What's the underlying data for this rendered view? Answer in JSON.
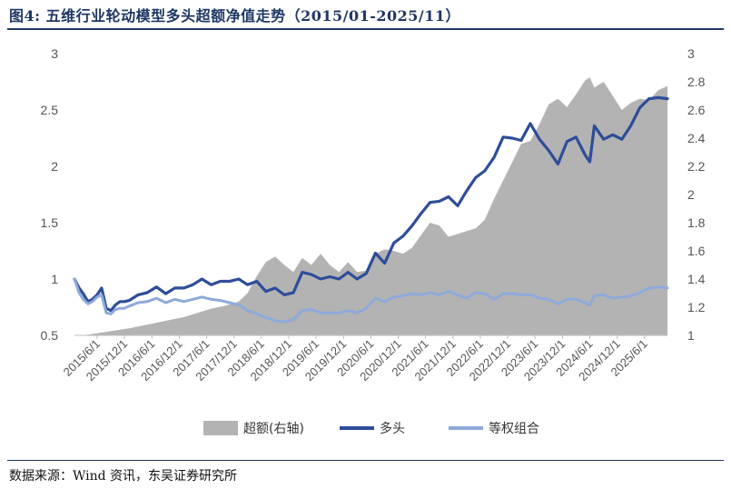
{
  "title": "图4:  五维行业轮动模型多头超额净值走势（2015/01-2025/11）",
  "source": "数据来源：Wind 资讯，东吴证券研究所",
  "colors": {
    "excess": "#b3b3b3",
    "long": "#2e4d99",
    "equal": "#8eaadb",
    "title": "#1f3864"
  },
  "chart_data": {
    "type": "line",
    "x_ticks": [
      "2015/6/1",
      "2015/12/1",
      "2016/6/1",
      "2016/12/1",
      "2017/6/1",
      "2017/12/1",
      "2018/6/1",
      "2018/12/1",
      "2019/6/1",
      "2019/12/1",
      "2020/6/1",
      "2020/12/1",
      "2021/6/1",
      "2021/12/1",
      "2022/6/1",
      "2022/12/1",
      "2023/6/1",
      "2023/12/1",
      "2024/6/1",
      "2024/12/1",
      "2025/6/1"
    ],
    "x_start": "2015/1/1",
    "x_end": "2025/11/1",
    "y_left": {
      "ticks": [
        "0.5",
        "1",
        "1.5",
        "2",
        "2.5",
        "3"
      ],
      "min": 0.5,
      "max": 3
    },
    "y_right": {
      "ticks": [
        "1",
        "1.2",
        "1.4",
        "1.6",
        "1.8",
        "2",
        "2.2",
        "2.4",
        "2.6",
        "2.8",
        "3"
      ],
      "min": 1,
      "max": 3
    },
    "legend": [
      "超额(右轴)",
      "多头",
      "等权组合"
    ],
    "series": [
      {
        "name": "超额(右轴)",
        "kind": "area",
        "axis": "right",
        "x": [
          "2015/1/1",
          "2015/3/1",
          "2015/5/1",
          "2015/7/1",
          "2015/9/1",
          "2015/11/1",
          "2016/1/1",
          "2016/4/1",
          "2016/7/1",
          "2016/10/1",
          "2017/1/1",
          "2017/4/1",
          "2017/7/1",
          "2017/10/1",
          "2018/1/1",
          "2018/3/1",
          "2018/5/1",
          "2018/7/1",
          "2018/9/1",
          "2018/11/1",
          "2019/1/1",
          "2019/3/1",
          "2019/5/1",
          "2019/7/1",
          "2019/9/1",
          "2019/11/1",
          "2020/1/1",
          "2020/3/1",
          "2020/5/1",
          "2020/7/1",
          "2020/9/1",
          "2020/11/1",
          "2021/1/1",
          "2021/3/1",
          "2021/5/1",
          "2021/7/1",
          "2021/9/1",
          "2021/11/1",
          "2022/1/1",
          "2022/3/1",
          "2022/5/1",
          "2022/7/1",
          "2022/9/1",
          "2022/11/1",
          "2023/1/1",
          "2023/3/1",
          "2023/5/1",
          "2023/7/1",
          "2023/9/1",
          "2023/11/1",
          "2024/1/1",
          "2024/3/1",
          "2024/5/1",
          "2024/6/1",
          "2024/7/1",
          "2024/9/1",
          "2024/11/1",
          "2025/1/1",
          "2025/3/1",
          "2025/5/1",
          "2025/7/1",
          "2025/9/1",
          "2025/11/1"
        ],
        "values": [
          1.0,
          1.0,
          1.01,
          1.02,
          1.03,
          1.04,
          1.05,
          1.07,
          1.09,
          1.11,
          1.13,
          1.16,
          1.19,
          1.21,
          1.24,
          1.3,
          1.42,
          1.52,
          1.56,
          1.5,
          1.45,
          1.55,
          1.5,
          1.58,
          1.5,
          1.45,
          1.52,
          1.45,
          1.46,
          1.58,
          1.61,
          1.6,
          1.58,
          1.62,
          1.71,
          1.8,
          1.78,
          1.7,
          1.72,
          1.74,
          1.76,
          1.82,
          1.97,
          2.1,
          2.23,
          2.36,
          2.38,
          2.5,
          2.64,
          2.68,
          2.62,
          2.71,
          2.81,
          2.83,
          2.76,
          2.8,
          2.7,
          2.6,
          2.65,
          2.68,
          2.67,
          2.74,
          2.77
        ]
      },
      {
        "name": "多头",
        "kind": "line",
        "axis": "left",
        "x": [
          "2015/1/1",
          "2015/2/1",
          "2015/3/1",
          "2015/4/1",
          "2015/5/1",
          "2015/6/1",
          "2015/7/1",
          "2015/8/1",
          "2015/9/1",
          "2015/10/1",
          "2015/11/1",
          "2015/12/1",
          "2016/1/1",
          "2016/3/1",
          "2016/5/1",
          "2016/7/1",
          "2016/9/1",
          "2016/11/1",
          "2017/1/1",
          "2017/3/1",
          "2017/5/1",
          "2017/7/1",
          "2017/9/1",
          "2017/11/1",
          "2018/1/1",
          "2018/3/1",
          "2018/5/1",
          "2018/7/1",
          "2018/9/1",
          "2018/11/1",
          "2019/1/1",
          "2019/3/1",
          "2019/5/1",
          "2019/7/1",
          "2019/9/1",
          "2019/11/1",
          "2020/1/1",
          "2020/3/1",
          "2020/5/1",
          "2020/7/1",
          "2020/9/1",
          "2020/11/1",
          "2021/1/1",
          "2021/3/1",
          "2021/5/1",
          "2021/7/1",
          "2021/9/1",
          "2021/11/1",
          "2022/1/1",
          "2022/3/1",
          "2022/5/1",
          "2022/7/1",
          "2022/9/1",
          "2022/11/1",
          "2023/1/1",
          "2023/3/1",
          "2023/5/1",
          "2023/7/1",
          "2023/9/1",
          "2023/11/1",
          "2024/1/1",
          "2024/3/1",
          "2024/5/1",
          "2024/6/1",
          "2024/7/1",
          "2024/9/1",
          "2024/11/1",
          "2025/1/1",
          "2025/3/1",
          "2025/5/1",
          "2025/7/1",
          "2025/9/1",
          "2025/11/1"
        ],
        "values": [
          1.0,
          0.92,
          0.87,
          0.8,
          0.82,
          0.86,
          0.92,
          0.74,
          0.72,
          0.77,
          0.8,
          0.8,
          0.81,
          0.86,
          0.88,
          0.93,
          0.87,
          0.92,
          0.92,
          0.95,
          1.0,
          0.95,
          0.98,
          0.98,
          1.0,
          0.95,
          0.98,
          0.89,
          0.92,
          0.86,
          0.88,
          1.06,
          1.04,
          1.0,
          1.02,
          1.0,
          1.06,
          1.0,
          1.05,
          1.23,
          1.14,
          1.32,
          1.38,
          1.47,
          1.58,
          1.68,
          1.69,
          1.73,
          1.65,
          1.78,
          1.9,
          1.96,
          2.08,
          2.26,
          2.25,
          2.23,
          2.38,
          2.24,
          2.14,
          2.02,
          2.22,
          2.26,
          2.1,
          2.04,
          2.36,
          2.24,
          2.28,
          2.24,
          2.36,
          2.52,
          2.6,
          2.61,
          2.6
        ]
      },
      {
        "name": "等权组合",
        "kind": "line",
        "axis": "left",
        "x": [
          "2015/1/1",
          "2015/2/1",
          "2015/3/1",
          "2015/4/1",
          "2015/5/1",
          "2015/6/1",
          "2015/7/1",
          "2015/8/1",
          "2015/9/1",
          "2015/10/1",
          "2015/11/1",
          "2015/12/1",
          "2016/1/1",
          "2016/3/1",
          "2016/5/1",
          "2016/7/1",
          "2016/9/1",
          "2016/11/1",
          "2017/1/1",
          "2017/3/1",
          "2017/5/1",
          "2017/7/1",
          "2017/9/1",
          "2017/11/1",
          "2018/1/1",
          "2018/3/1",
          "2018/5/1",
          "2018/7/1",
          "2018/9/1",
          "2018/11/1",
          "2019/1/1",
          "2019/3/1",
          "2019/5/1",
          "2019/7/1",
          "2019/9/1",
          "2019/11/1",
          "2020/1/1",
          "2020/3/1",
          "2020/5/1",
          "2020/7/1",
          "2020/9/1",
          "2020/11/1",
          "2021/1/1",
          "2021/3/1",
          "2021/5/1",
          "2021/7/1",
          "2021/9/1",
          "2021/11/1",
          "2022/1/1",
          "2022/3/1",
          "2022/5/1",
          "2022/7/1",
          "2022/9/1",
          "2022/11/1",
          "2023/1/1",
          "2023/3/1",
          "2023/5/1",
          "2023/7/1",
          "2023/9/1",
          "2023/11/1",
          "2024/1/1",
          "2024/3/1",
          "2024/5/1",
          "2024/6/1",
          "2024/7/1",
          "2024/9/1",
          "2024/11/1",
          "2025/1/1",
          "2025/3/1",
          "2025/5/1",
          "2025/7/1",
          "2025/9/1",
          "2025/11/1"
        ],
        "values": [
          1.0,
          0.88,
          0.82,
          0.78,
          0.8,
          0.84,
          0.86,
          0.7,
          0.69,
          0.73,
          0.74,
          0.74,
          0.76,
          0.79,
          0.8,
          0.83,
          0.79,
          0.82,
          0.8,
          0.82,
          0.84,
          0.82,
          0.81,
          0.79,
          0.77,
          0.72,
          0.69,
          0.66,
          0.63,
          0.62,
          0.64,
          0.72,
          0.73,
          0.7,
          0.7,
          0.7,
          0.72,
          0.7,
          0.74,
          0.83,
          0.8,
          0.84,
          0.85,
          0.87,
          0.86,
          0.88,
          0.86,
          0.89,
          0.86,
          0.83,
          0.88,
          0.87,
          0.82,
          0.87,
          0.87,
          0.86,
          0.86,
          0.83,
          0.82,
          0.78,
          0.82,
          0.82,
          0.79,
          0.77,
          0.85,
          0.86,
          0.83,
          0.84,
          0.85,
          0.88,
          0.92,
          0.93,
          0.92
        ]
      }
    ]
  }
}
